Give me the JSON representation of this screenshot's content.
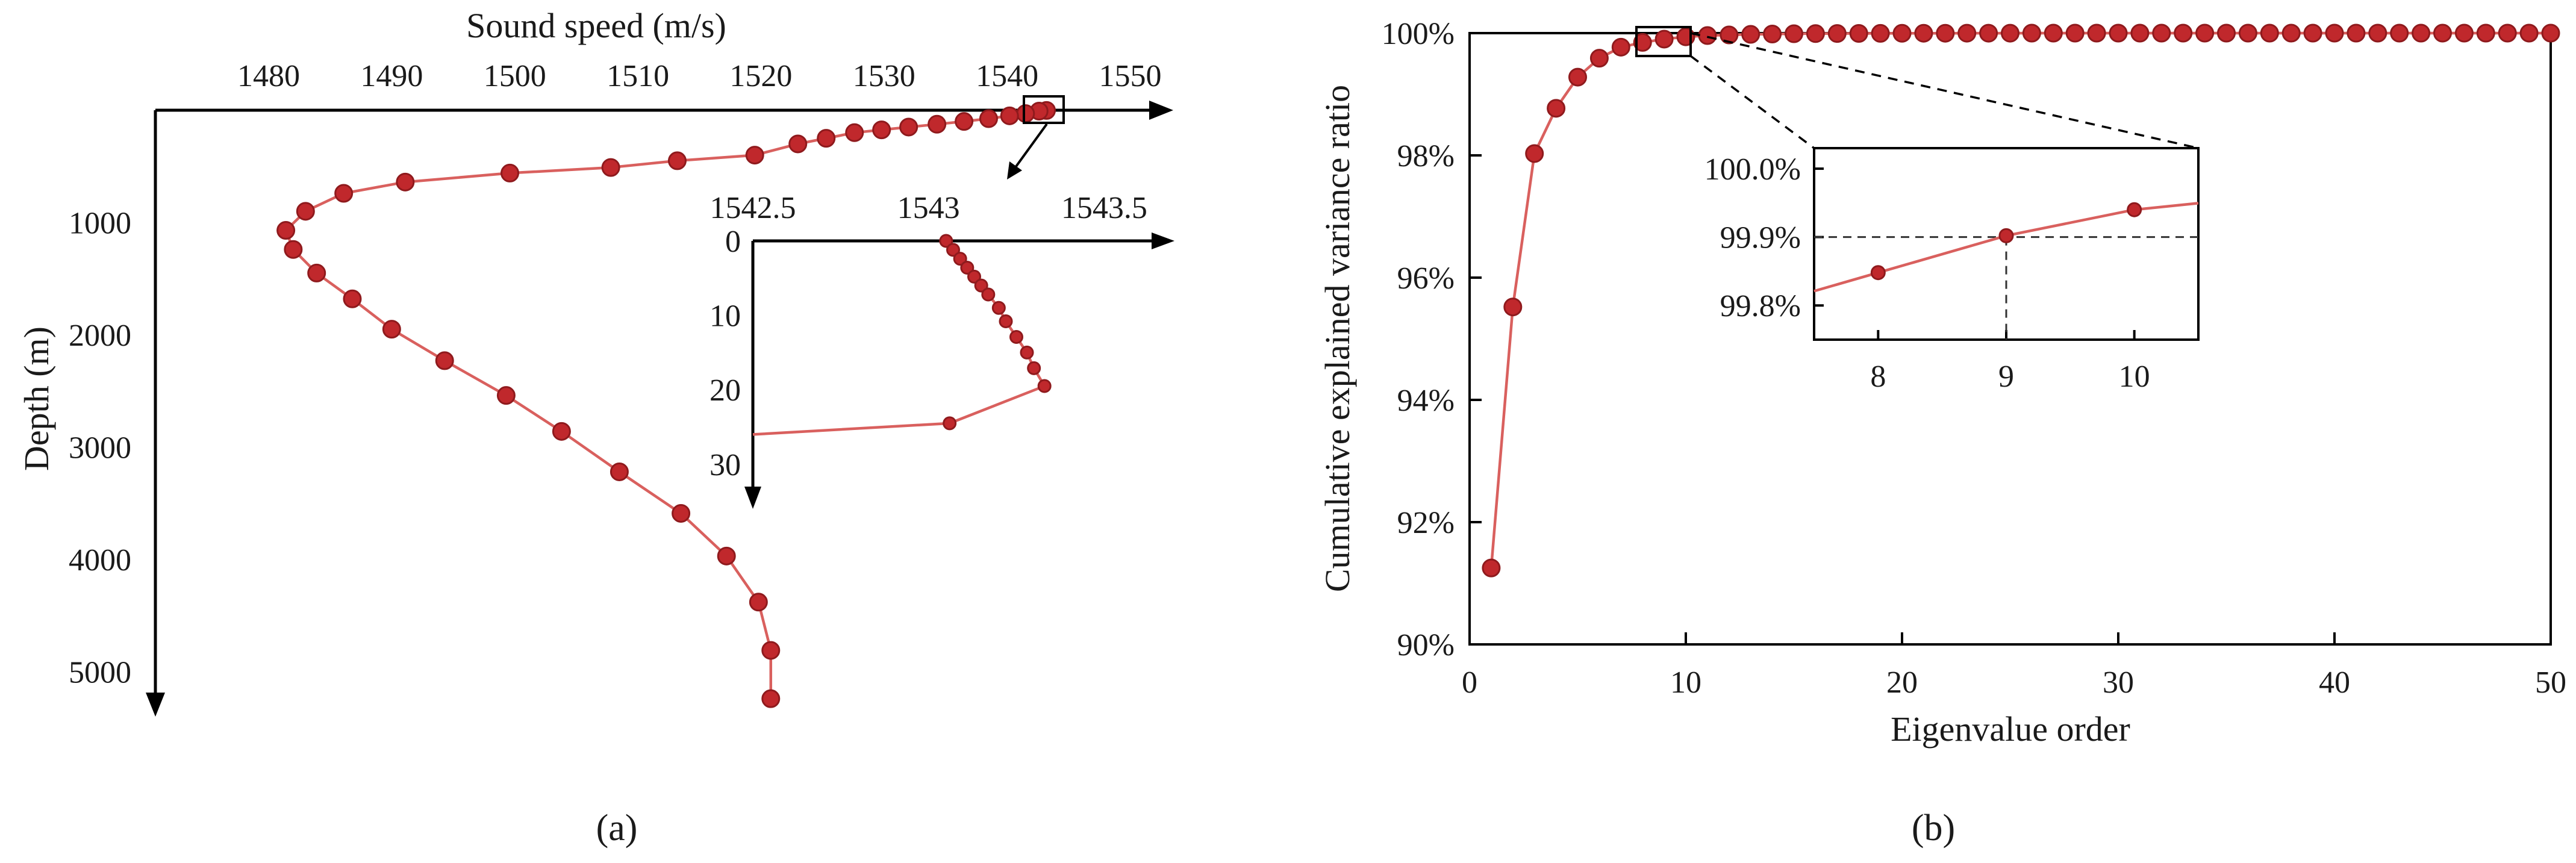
{
  "colors": {
    "series_line": "#d9605e",
    "marker_fill": "#c0282c",
    "marker_edge": "#8f1a1d",
    "axis": "#000000"
  },
  "chart_data": [
    {
      "panel": "(a)",
      "type": "line",
      "xlabel": "Sound speed (m/s)",
      "ylabel": "Depth (m)",
      "xticks": [
        "1480",
        "1490",
        "1500",
        "1510",
        "1520",
        "1530",
        "1540",
        "1550"
      ],
      "yticks": [
        "1000",
        "2000",
        "3000",
        "4000",
        "5000"
      ],
      "xlim": [
        1470.8,
        1553.5
      ],
      "ylim": [
        0,
        5400
      ],
      "y_inverted": true,
      "markers": true,
      "x": [
        1543.2,
        1542.6,
        1541.5,
        1540.2,
        1538.5,
        1536.5,
        1534.3,
        1532.0,
        1529.8,
        1527.6,
        1525.3,
        1523.0,
        1519.5,
        1513.2,
        1507.8,
        1499.6,
        1491.1,
        1486.1,
        1483.0,
        1481.4,
        1482.0,
        1483.9,
        1486.8,
        1490.0,
        1494.3,
        1499.3,
        1503.8,
        1508.5,
        1513.5,
        1517.2,
        1519.8,
        1520.8,
        1520.8
      ],
      "y": [
        2,
        8,
        30,
        50,
        75,
        100,
        125,
        150,
        175,
        200,
        250,
        300,
        400,
        450,
        510,
        560,
        640,
        740,
        900,
        1070,
        1240,
        1450,
        1680,
        1950,
        2230,
        2540,
        2860,
        3220,
        3590,
        3970,
        4380,
        4810,
        5240
      ],
      "inset": {
        "xticks": [
          "1542.5",
          "1543",
          "1543.5"
        ],
        "yticks": [
          "0",
          "10",
          "20",
          "30"
        ],
        "xlim": [
          1542.5,
          1543.7
        ],
        "ylim": [
          0,
          36
        ],
        "y_inverted": true,
        "x": [
          1543.05,
          1543.07,
          1543.09,
          1543.11,
          1543.13,
          1543.15,
          1543.17,
          1543.2,
          1543.22,
          1543.25,
          1543.28,
          1543.3,
          1543.33,
          1543.06,
          1542.5
        ],
        "y": [
          0,
          1.2,
          2.4,
          3.6,
          4.8,
          6.0,
          7.2,
          9.0,
          10.8,
          12.9,
          15.0,
          17.1,
          19.5,
          24.5,
          26.0
        ]
      }
    },
    {
      "panel": "(b)",
      "type": "scatter",
      "xlabel": "Eigenvalue order",
      "ylabel": "Cumulative explained variance ratio",
      "xticks": [
        "0",
        "10",
        "20",
        "30",
        "40",
        "50"
      ],
      "yticks": [
        "90%",
        "92%",
        "94%",
        "96%",
        "98%",
        "100%"
      ],
      "xlim": [
        0,
        50
      ],
      "ylim": [
        90,
        100
      ],
      "markers": true,
      "x": [
        1,
        2,
        3,
        4,
        5,
        6,
        7,
        8,
        9,
        10,
        11,
        12,
        13,
        14,
        15,
        16,
        17,
        18,
        19,
        20,
        21,
        22,
        23,
        24,
        25,
        26,
        27,
        28,
        29,
        30,
        31,
        32,
        33,
        34,
        35,
        36,
        37,
        38,
        39,
        40,
        41,
        42,
        43,
        44,
        45,
        46,
        47,
        48,
        49,
        50
      ],
      "y": [
        91.25,
        95.52,
        98.03,
        98.77,
        99.28,
        99.59,
        99.77,
        99.848,
        99.902,
        99.94,
        99.96,
        99.97,
        99.98,
        99.985,
        99.99,
        99.992,
        99.994,
        99.995,
        99.996,
        99.997,
        99.998,
        99.998,
        99.999,
        99.999,
        99.999,
        100,
        100,
        100,
        100,
        100,
        100,
        100,
        100,
        100,
        100,
        100,
        100,
        100,
        100,
        100,
        100,
        100,
        100,
        100,
        100,
        100,
        100,
        100,
        100,
        100
      ],
      "inset": {
        "xticks": [
          "8",
          "9",
          "10"
        ],
        "yticks": [
          "99.8%",
          "99.9%",
          "100.0%"
        ],
        "xlim": [
          7.5,
          10.5
        ],
        "ylim": [
          99.75,
          100.03
        ],
        "x": [
          8,
          9,
          10
        ],
        "y": [
          99.848,
          99.902,
          99.94
        ],
        "reference_x": 9,
        "reference_y": 99.9
      }
    }
  ]
}
